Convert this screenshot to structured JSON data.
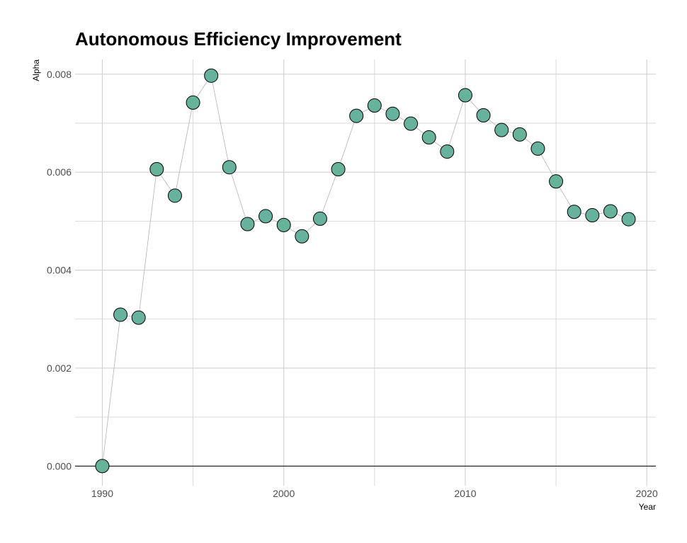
{
  "chart_data": {
    "type": "scatter",
    "title": "Autonomous Efficiency Improvement",
    "xlabel": "Year",
    "ylabel": "Alpha",
    "xlim": [
      1988.5,
      2020.5
    ],
    "ylim": [
      -0.0004,
      0.0083
    ],
    "x_ticks": [
      1990,
      2000,
      2010,
      2020
    ],
    "x_minor_ticks": [
      1995,
      2005,
      2015
    ],
    "y_ticks": [
      0,
      0.002,
      0.004,
      0.006,
      0.008
    ],
    "y_tick_labels": [
      "0.000",
      "0.002",
      "0.004",
      "0.006",
      "0.008"
    ],
    "y_minor_ticks": [
      0.001,
      0.003,
      0.005,
      0.007
    ],
    "grid": true,
    "connect_points": true,
    "colors": {
      "point_fill": "#66b29c",
      "point_stroke": "#000000",
      "line": "#b3b3b3",
      "grid": "#d0d0d0",
      "zero_line": "#000000"
    },
    "series": [
      {
        "x": [
          1990,
          1991,
          1992,
          1993,
          1994,
          1995,
          1996,
          1997,
          1998,
          1999,
          2000,
          2001,
          2002,
          2003,
          2004,
          2005,
          2006,
          2007,
          2008,
          2009,
          2010,
          2011,
          2012,
          2013,
          2014,
          2015,
          2016,
          2017,
          2018,
          2019
        ],
        "y": [
          0.0,
          0.00309,
          0.00303,
          0.00606,
          0.00552,
          0.00742,
          0.00797,
          0.0061,
          0.00494,
          0.0051,
          0.00492,
          0.00469,
          0.00505,
          0.00606,
          0.00715,
          0.00736,
          0.00719,
          0.00699,
          0.00671,
          0.00642,
          0.00757,
          0.00716,
          0.00686,
          0.00677,
          0.00648,
          0.00581,
          0.00519,
          0.00512,
          0.0052,
          0.00504
        ]
      }
    ]
  }
}
